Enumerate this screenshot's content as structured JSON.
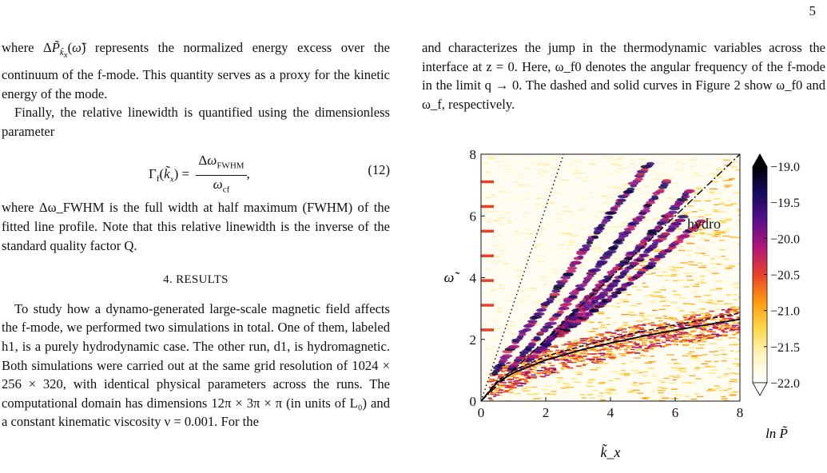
{
  "page_number": "5",
  "left_column": {
    "para1": "over the continuum of the f-mode. This quantity serves as a proxy for the kinetic energy of the mode.",
    "para2": "Finally, the relative linewidth is quantified using the dimensionless parameter",
    "eq_number": "(12)",
    "para3": "where Δω_FWHM is the full width at half maximum (FWHM) of the fitted line profile. Note that this relative linewidth is the inverse of the standard quality factor Q.",
    "section_title": "4. RESULTS",
    "para4": "To study how a dynamo-generated large-scale magnetic field affects the f-mode, we performed two simulations in total. One of them, labeled h1, is a purely hydrodynamic case. The other run, d1, is hydromagnetic. Both simulations were carried out at the same grid resolution of 1024 × 256 × 320, with identical physical parameters across the runs. The computational domain has dimensions 12π × 3π × π (in units of L₀) and a constant kinematic viscosity ν = 0.001. For the"
  },
  "right_column": {
    "para1": "and characterizes the jump in the thermodynamic variables across the interface at z = 0. Here, ω_f0 denotes the angular frequency of the f-mode in the limit q → 0. The dashed and solid curves in Figure 2 show ω_f0 and ω_f, respectively.",
    "figure_ref": "2"
  },
  "chart_data": {
    "type": "heatmap",
    "title": "",
    "xlabel": "k̃_x",
    "ylabel": "ω̃",
    "xlim": [
      0,
      8
    ],
    "ylim": [
      0,
      8
    ],
    "x_ticks": [
      "0",
      "2",
      "4",
      "6",
      "8"
    ],
    "y_ticks": [
      "0",
      "2",
      "4",
      "6",
      "8"
    ],
    "annotation": "hydro",
    "colorbar_label": "ln P̃",
    "colorbar_ticks": [
      "−19.0",
      "−19.5",
      "−20.0",
      "−20.5",
      "−21.0",
      "−21.5",
      "−22.0"
    ],
    "colorbar_range": [
      -22.0,
      -19.0
    ],
    "colormap": [
      "#ffffff",
      "#fff4c2",
      "#ffd84a",
      "#ff9a10",
      "#e8402a",
      "#b0157a",
      "#5a0f8c",
      "#150a5e",
      "#000000"
    ],
    "lines": [
      {
        "style": "dotted",
        "x": [
          0,
          2.55
        ],
        "y": [
          0,
          8
        ]
      },
      {
        "style": "dashdot",
        "x": [
          0,
          8
        ],
        "y": [
          0,
          8
        ]
      },
      {
        "style": "dashed",
        "x": [
          0,
          0.5,
          1,
          2,
          3,
          4,
          5,
          6,
          7,
          8
        ],
        "y": [
          0,
          0.65,
          1.0,
          1.45,
          1.75,
          2.02,
          2.26,
          2.47,
          2.66,
          2.85
        ]
      },
      {
        "style": "solid",
        "x": [
          0,
          0.5,
          1,
          2,
          3,
          4,
          5,
          6,
          7,
          8
        ],
        "y": [
          0,
          0.6,
          0.92,
          1.33,
          1.63,
          1.88,
          2.1,
          2.3,
          2.48,
          2.65
        ]
      }
    ],
    "ridges": [
      {
        "x": [
          0.4,
          1.2,
          2.0,
          2.8,
          3.6,
          4.4,
          5.3
        ],
        "y": [
          0.9,
          2.1,
          3.1,
          4.3,
          5.5,
          6.6,
          7.8
        ]
      },
      {
        "x": [
          0.9,
          1.7,
          2.6,
          3.4,
          4.2,
          5.0,
          5.8
        ],
        "y": [
          1.0,
          2.0,
          3.1,
          4.1,
          5.1,
          6.1,
          7.2
        ]
      },
      {
        "x": [
          1.5,
          2.4,
          3.2,
          4.0,
          4.9,
          5.7,
          6.5
        ],
        "y": [
          1.3,
          2.3,
          3.2,
          4.1,
          5.0,
          5.9,
          6.9
        ]
      },
      {
        "x": [
          1.9,
          2.7,
          3.6,
          4.5,
          5.4,
          6.3
        ],
        "y": [
          1.7,
          2.5,
          3.3,
          4.2,
          5.1,
          6.0
        ]
      },
      {
        "x": [
          2.4,
          3.3,
          4.2,
          5.1,
          6.0,
          6.9
        ],
        "y": [
          2.1,
          2.8,
          3.5,
          4.3,
          5.1,
          5.9
        ]
      }
    ],
    "left_edge_streaks": [
      2.3,
      3.1,
      3.9,
      4.7,
      5.5,
      6.3,
      7.1
    ]
  }
}
